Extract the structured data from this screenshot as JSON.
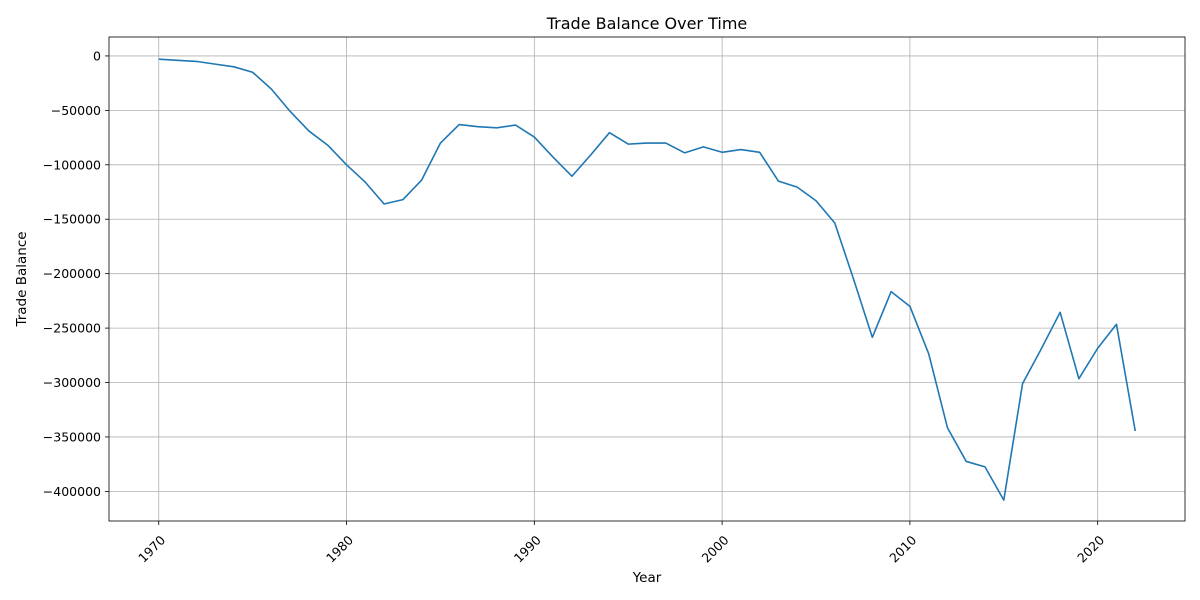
{
  "chart_data": {
    "type": "line",
    "title": "Trade Balance Over Time",
    "xlabel": "Year",
    "ylabel": "Trade Balance",
    "grid": true,
    "xlim": [
      1967.35,
      2024.65
    ],
    "ylim": [
      -427200,
      17400
    ],
    "xticks": [
      1970,
      1980,
      1990,
      2000,
      2010,
      2020
    ],
    "yticks": [
      0,
      -50000,
      -100000,
      -150000,
      -200000,
      -250000,
      -300000,
      -350000,
      -400000
    ],
    "xtick_rotation": 45,
    "color": "#1f77b4",
    "series": [
      {
        "x": [
          1970,
          1971,
          1972,
          1973,
          1974,
          1975,
          1976,
          1977,
          1978,
          1979,
          1980,
          1981,
          1982,
          1983,
          1984,
          1985,
          1986,
          1987,
          1988,
          1989,
          1990,
          1991,
          1992,
          1993,
          1994,
          1995,
          1996,
          1997,
          1998,
          1999,
          2000,
          2001,
          2002,
          2003,
          2004,
          2005,
          2006,
          2007,
          2008,
          2009,
          2010,
          2011,
          2012,
          2013,
          2014,
          2015,
          2016,
          2017,
          2018,
          2019,
          2020,
          2021,
          2022
        ],
        "values": [
          -3000,
          -4000,
          -5000,
          -7500,
          -10000,
          -15000,
          -30500,
          -51000,
          -69000,
          -82000,
          -100000,
          -116000,
          -136000,
          -132000,
          -114000,
          -80000,
          -63000,
          -65000,
          -66000,
          -63500,
          -74500,
          -93000,
          -110500,
          -91000,
          -70500,
          -81000,
          -80000,
          -80000,
          -89000,
          -83500,
          -88500,
          -86000,
          -88500,
          -115000,
          -120500,
          -133000,
          -153500,
          -205000,
          -258500,
          -216500,
          -230000,
          -273500,
          -341500,
          -372500,
          -377500,
          -408000,
          -301000,
          -269000,
          -235500,
          -296500,
          -268500,
          -246500,
          -344500
        ]
      }
    ]
  }
}
